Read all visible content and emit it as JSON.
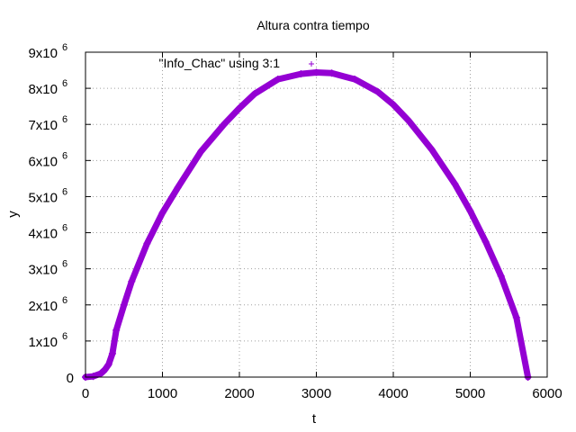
{
  "chart_data": {
    "type": "scatter",
    "title": "Altura contra tiempo",
    "xlabel": "t",
    "ylabel": "y",
    "xlim": [
      0,
      6000
    ],
    "ylim": [
      0,
      9000000
    ],
    "grid": true,
    "legend_position": "top-left",
    "x_ticks": [
      {
        "value": 0,
        "label": "0"
      },
      {
        "value": 1000,
        "label": "1000"
      },
      {
        "value": 2000,
        "label": "2000"
      },
      {
        "value": 3000,
        "label": "3000"
      },
      {
        "value": 4000,
        "label": "4000"
      },
      {
        "value": 5000,
        "label": "5000"
      },
      {
        "value": 6000,
        "label": "6000"
      }
    ],
    "y_ticks": [
      {
        "value": 0,
        "label": "0",
        "exp": ""
      },
      {
        "value": 1000000,
        "label": "1x10",
        "exp": "6"
      },
      {
        "value": 2000000,
        "label": "2x10",
        "exp": "6"
      },
      {
        "value": 3000000,
        "label": "3x10",
        "exp": "6"
      },
      {
        "value": 4000000,
        "label": "4x10",
        "exp": "6"
      },
      {
        "value": 5000000,
        "label": "5x10",
        "exp": "6"
      },
      {
        "value": 6000000,
        "label": "6x10",
        "exp": "6"
      },
      {
        "value": 7000000,
        "label": "7x10",
        "exp": "6"
      },
      {
        "value": 8000000,
        "label": "8x10",
        "exp": "6"
      },
      {
        "value": 9000000,
        "label": "9x10",
        "exp": "6"
      }
    ],
    "series": [
      {
        "name": "\"Info_Chac\" using 3:1",
        "color": "#9400d3",
        "marker": "plus",
        "x": [
          0,
          100,
          200,
          250,
          300,
          350,
          400,
          500,
          600,
          800,
          1000,
          1200,
          1500,
          1800,
          2000,
          2200,
          2500,
          2800,
          3000,
          3200,
          3500,
          3800,
          4000,
          4200,
          4500,
          4800,
          5000,
          5200,
          5400,
          5600,
          5750
        ],
        "y": [
          0,
          20000,
          100000,
          200000,
          350000,
          650000,
          1300000,
          2000000,
          2650000,
          3700000,
          4550000,
          5250000,
          6250000,
          7000000,
          7450000,
          7850000,
          8250000,
          8400000,
          8440000,
          8420000,
          8250000,
          7900000,
          7550000,
          7100000,
          6300000,
          5350000,
          4600000,
          3750000,
          2800000,
          1650000,
          0
        ]
      }
    ]
  }
}
